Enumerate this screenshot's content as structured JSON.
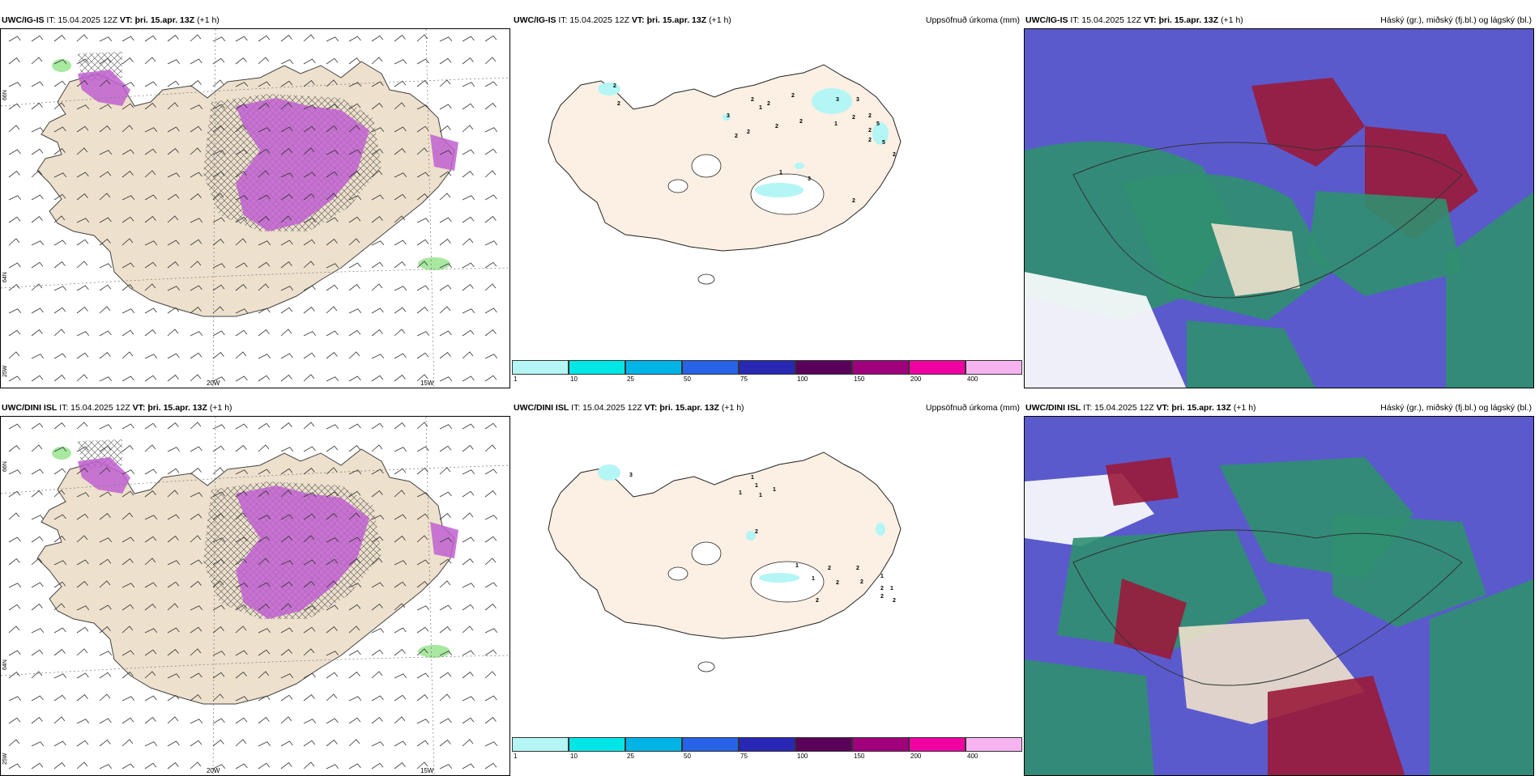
{
  "rows": [
    {
      "model": "UWC/IG-IS",
      "panels": [
        {
          "model": "UWC/IG-IS",
          "it": "IT: 15.04.2025 12Z",
          "vt_label": "VT:",
          "vt": "þri. 15.apr. 13Z",
          "lead": "(+1 h)",
          "right_title": ""
        },
        {
          "model": "UWC/IG-IS",
          "it": "IT: 15.04.2025 12Z",
          "vt_label": "VT:",
          "vt": "þri. 15.apr. 13Z",
          "lead": "(+1 h)",
          "right_title": "Uppsöfnuð úrkoma (mm)"
        },
        {
          "model": "UWC/IG-IS",
          "it": "IT: 15.04.2025 12Z",
          "vt_label": "VT:",
          "vt": "þri. 15.apr. 13Z",
          "lead": "(+1 h)",
          "right_title": "Háský (gr.), miðský (fj.bl.) og lágský (bl.)"
        }
      ]
    },
    {
      "model": "UWC/DINI ISL",
      "panels": [
        {
          "model": "UWC/DINI ISL",
          "it": "IT: 15.04.2025 12Z",
          "vt_label": "VT:",
          "vt": "þri. 15.apr. 13Z",
          "lead": "(+1 h)",
          "right_title": ""
        },
        {
          "model": "UWC/DINI ISL",
          "it": "IT: 15.04.2025 12Z",
          "vt_label": "VT:",
          "vt": "þri. 15.apr. 13Z",
          "lead": "(+1 h)",
          "right_title": "Uppsöfnuð úrkoma (mm)"
        },
        {
          "model": "UWC/DINI ISL",
          "it": "IT: 15.04.2025 12Z",
          "vt_label": "VT:",
          "vt": "þri. 15.apr. 13Z",
          "lead": "(+1 h)",
          "right_title": "Háský (gr.), miðský (fj.bl.) og lágský (bl.)"
        }
      ]
    }
  ],
  "grid_labels": {
    "lat_66": "66N",
    "lat_64": "64N",
    "lon_20": "20W",
    "lon_15": "15W",
    "lon_25": "25W"
  },
  "precip_colorbar": {
    "ticks": [
      "1",
      "10",
      "25",
      "50",
      "75",
      "100",
      "150",
      "200",
      "400"
    ],
    "colors": [
      "#b4f5f5",
      "#00e6e6",
      "#00b4e6",
      "#2862e6",
      "#2828b4",
      "#5a005a",
      "#a0007d",
      "#f000a0",
      "#f5b4f0"
    ]
  },
  "precip_labels_top": [
    "2",
    "2",
    "3",
    "2",
    "2",
    "2",
    "1",
    "2",
    "2",
    "2",
    "2",
    "1",
    "3",
    "3",
    "3",
    "1",
    "2",
    "2",
    "2",
    "2",
    "2",
    "5",
    "5",
    "2"
  ],
  "precip_labels_bottom": [
    "3",
    "1",
    "1",
    "1",
    "1",
    "1",
    "2",
    "1",
    "1",
    "2",
    "2",
    "2",
    "2",
    "2",
    "1",
    "2",
    "2",
    "1",
    "2"
  ],
  "colors": {
    "land": "#ede0cc",
    "land_precip": "#fbf0e3",
    "precip_light": "#b4f5f5",
    "purple": "#c060d0",
    "green_light": "#a8e8a0",
    "cloud_blue": "#5a5acd",
    "cloud_red": "#9a1a3a",
    "cloud_green": "#2f8f6f"
  }
}
